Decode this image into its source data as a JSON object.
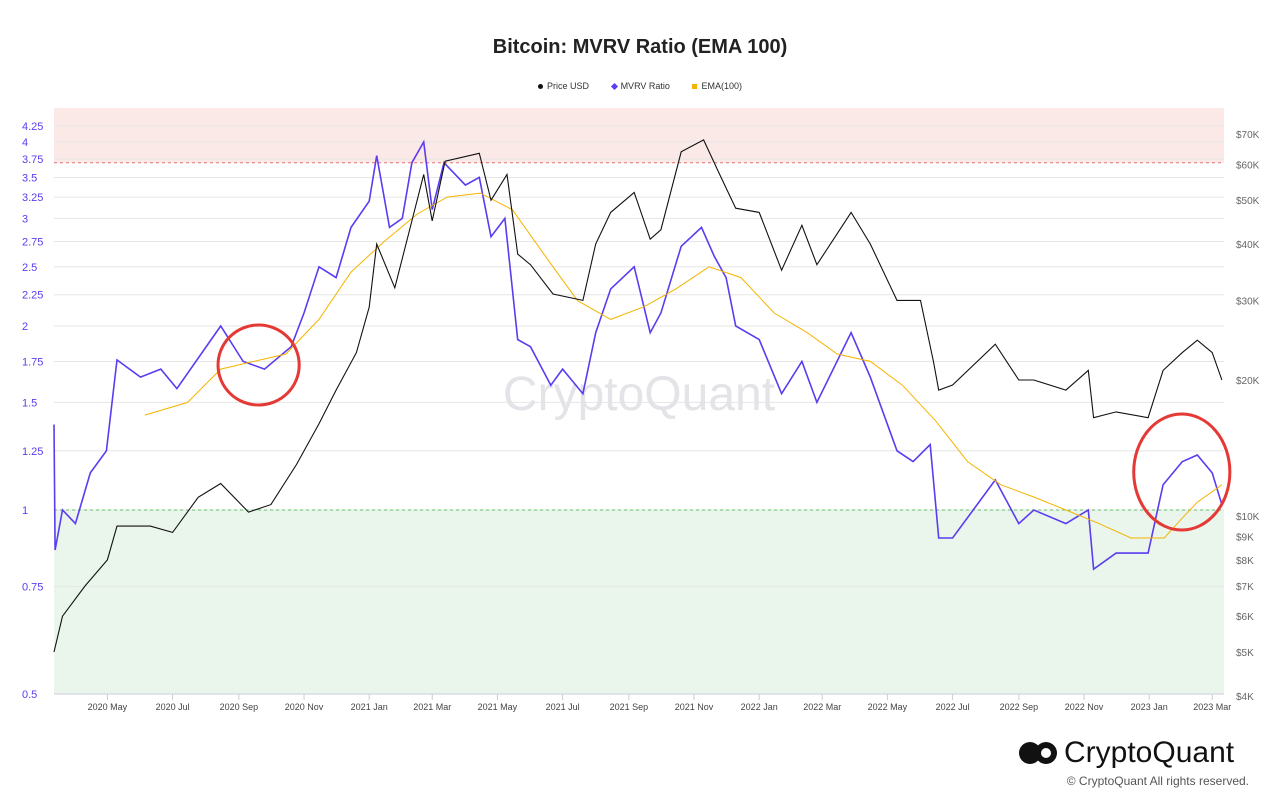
{
  "chart_data": {
    "type": "line",
    "title": "Bitcoin: MVRV Ratio (EMA 100)",
    "legend_position": "top",
    "y_left": {
      "scale": "log",
      "range": [
        0.5,
        4.5
      ],
      "ticks": [
        "0.5",
        "0.75",
        "1",
        "1.25",
        "1.5",
        "1.75",
        "2",
        "2.25",
        "2.5",
        "2.75",
        "3",
        "3.25",
        "3.5",
        "3.75",
        "4",
        "4.25"
      ]
    },
    "y_right": {
      "scale": "log",
      "range": [
        4000,
        80000
      ],
      "ticks": [
        {
          "v": 4000,
          "label": "$4K"
        },
        {
          "v": 5000,
          "label": "$5K"
        },
        {
          "v": 6000,
          "label": "$6K"
        },
        {
          "v": 7000,
          "label": "$7K"
        },
        {
          "v": 8000,
          "label": "$8K"
        },
        {
          "v": 9000,
          "label": "$9K"
        },
        {
          "v": 10000,
          "label": "$10K"
        },
        {
          "v": 20000,
          "label": "$20K"
        },
        {
          "v": 30000,
          "label": "$30K"
        },
        {
          "v": 40000,
          "label": "$40K"
        },
        {
          "v": 50000,
          "label": "$50K"
        },
        {
          "v": 60000,
          "label": "$60K"
        },
        {
          "v": 70000,
          "label": "$70K"
        }
      ]
    },
    "x": {
      "range": [
        "2020-03-12",
        "2023-03-12"
      ],
      "ticks": [
        {
          "d": "2020-05-01",
          "label": "2020 May"
        },
        {
          "d": "2020-07-01",
          "label": "2020 Jul"
        },
        {
          "d": "2020-09-01",
          "label": "2020 Sep"
        },
        {
          "d": "2020-11-01",
          "label": "2020 Nov"
        },
        {
          "d": "2021-01-01",
          "label": "2021 Jan"
        },
        {
          "d": "2021-03-01",
          "label": "2021 Mar"
        },
        {
          "d": "2021-05-01",
          "label": "2021 May"
        },
        {
          "d": "2021-07-01",
          "label": "2021 Jul"
        },
        {
          "d": "2021-09-01",
          "label": "2021 Sep"
        },
        {
          "d": "2021-11-01",
          "label": "2021 Nov"
        },
        {
          "d": "2022-01-01",
          "label": "2022 Jan"
        },
        {
          "d": "2022-03-01",
          "label": "2022 Mar"
        },
        {
          "d": "2022-05-01",
          "label": "2022 May"
        },
        {
          "d": "2022-07-01",
          "label": "2022 Jul"
        },
        {
          "d": "2022-09-01",
          "label": "2022 Sep"
        },
        {
          "d": "2022-11-01",
          "label": "2022 Nov"
        },
        {
          "d": "2023-01-01",
          "label": "2023 Jan"
        },
        {
          "d": "2023-03-01",
          "label": "2023 Mar"
        }
      ]
    },
    "zones": {
      "overvalued_above": 3.7,
      "undervalued_below": 1,
      "overvalued_color": "#fbe9e7",
      "undervalued_color": "#eaf5ec"
    },
    "series": [
      {
        "name": "Price USD",
        "axis": "right",
        "color": "#111111",
        "points": [
          [
            "2020-03-12",
            5000
          ],
          [
            "2020-03-20",
            6000
          ],
          [
            "2020-04-10",
            7000
          ],
          [
            "2020-05-01",
            8000
          ],
          [
            "2020-05-10",
            9500
          ],
          [
            "2020-06-10",
            9500
          ],
          [
            "2020-07-01",
            9200
          ],
          [
            "2020-07-25",
            11000
          ],
          [
            "2020-08-15",
            11800
          ],
          [
            "2020-09-10",
            10200
          ],
          [
            "2020-10-01",
            10600
          ],
          [
            "2020-10-25",
            13000
          ],
          [
            "2020-11-15",
            16000
          ],
          [
            "2020-12-01",
            19000
          ],
          [
            "2020-12-20",
            23000
          ],
          [
            "2021-01-01",
            29000
          ],
          [
            "2021-01-08",
            40000
          ],
          [
            "2021-01-25",
            32000
          ],
          [
            "2021-02-10",
            45000
          ],
          [
            "2021-02-21",
            57000
          ],
          [
            "2021-03-01",
            45000
          ],
          [
            "2021-03-13",
            61000
          ],
          [
            "2021-04-14",
            63500
          ],
          [
            "2021-04-25",
            50000
          ],
          [
            "2021-05-10",
            57000
          ],
          [
            "2021-05-20",
            38000
          ],
          [
            "2021-06-01",
            36000
          ],
          [
            "2021-06-22",
            31000
          ],
          [
            "2021-07-20",
            30000
          ],
          [
            "2021-08-01",
            40000
          ],
          [
            "2021-08-15",
            47000
          ],
          [
            "2021-09-06",
            52000
          ],
          [
            "2021-09-21",
            41000
          ],
          [
            "2021-10-01",
            43000
          ],
          [
            "2021-10-20",
            64000
          ],
          [
            "2021-11-10",
            68000
          ],
          [
            "2021-11-25",
            57000
          ],
          [
            "2021-12-10",
            48000
          ],
          [
            "2022-01-01",
            47000
          ],
          [
            "2022-01-22",
            35000
          ],
          [
            "2022-02-10",
            44000
          ],
          [
            "2022-02-24",
            36000
          ],
          [
            "2022-03-28",
            47000
          ],
          [
            "2022-04-15",
            40000
          ],
          [
            "2022-05-10",
            30000
          ],
          [
            "2022-06-01",
            30000
          ],
          [
            "2022-06-13",
            22000
          ],
          [
            "2022-06-18",
            19000
          ],
          [
            "2022-07-01",
            19500
          ],
          [
            "2022-08-10",
            24000
          ],
          [
            "2022-09-01",
            20000
          ],
          [
            "2022-09-15",
            20000
          ],
          [
            "2022-10-15",
            19000
          ],
          [
            "2022-11-05",
            21000
          ],
          [
            "2022-11-10",
            16500
          ],
          [
            "2022-12-01",
            17000
          ],
          [
            "2022-12-31",
            16500
          ],
          [
            "2023-01-14",
            21000
          ],
          [
            "2023-02-01",
            23000
          ],
          [
            "2023-02-15",
            24500
          ],
          [
            "2023-03-01",
            23000
          ],
          [
            "2023-03-10",
            20000
          ]
        ]
      },
      {
        "name": "MVRV Ratio",
        "axis": "left",
        "color": "#5b3cf0",
        "points": [
          [
            "2020-03-12",
            1.38
          ],
          [
            "2020-03-13",
            0.86
          ],
          [
            "2020-03-20",
            1.0
          ],
          [
            "2020-04-01",
            0.95
          ],
          [
            "2020-04-15",
            1.15
          ],
          [
            "2020-04-30",
            1.25
          ],
          [
            "2020-05-10",
            1.76
          ],
          [
            "2020-06-01",
            1.65
          ],
          [
            "2020-06-20",
            1.7
          ],
          [
            "2020-07-05",
            1.58
          ],
          [
            "2020-08-15",
            2.0
          ],
          [
            "2020-09-05",
            1.75
          ],
          [
            "2020-09-25",
            1.7
          ],
          [
            "2020-10-20",
            1.85
          ],
          [
            "2020-11-01",
            2.1
          ],
          [
            "2020-11-15",
            2.5
          ],
          [
            "2020-12-01",
            2.4
          ],
          [
            "2020-12-15",
            2.9
          ],
          [
            "2021-01-01",
            3.2
          ],
          [
            "2021-01-08",
            3.8
          ],
          [
            "2021-01-20",
            2.9
          ],
          [
            "2021-02-01",
            3.0
          ],
          [
            "2021-02-10",
            3.7
          ],
          [
            "2021-02-21",
            4.0
          ],
          [
            "2021-03-01",
            3.1
          ],
          [
            "2021-03-12",
            3.7
          ],
          [
            "2021-04-01",
            3.4
          ],
          [
            "2021-04-14",
            3.5
          ],
          [
            "2021-04-25",
            2.8
          ],
          [
            "2021-05-08",
            3.0
          ],
          [
            "2021-05-20",
            1.9
          ],
          [
            "2021-06-01",
            1.85
          ],
          [
            "2021-06-20",
            1.6
          ],
          [
            "2021-07-01",
            1.7
          ],
          [
            "2021-07-20",
            1.55
          ],
          [
            "2021-08-01",
            1.95
          ],
          [
            "2021-08-15",
            2.3
          ],
          [
            "2021-09-06",
            2.5
          ],
          [
            "2021-09-21",
            1.95
          ],
          [
            "2021-10-01",
            2.1
          ],
          [
            "2021-10-20",
            2.7
          ],
          [
            "2021-11-08",
            2.9
          ],
          [
            "2021-11-20",
            2.6
          ],
          [
            "2021-12-01",
            2.4
          ],
          [
            "2021-12-10",
            2.0
          ],
          [
            "2022-01-01",
            1.9
          ],
          [
            "2022-01-22",
            1.55
          ],
          [
            "2022-02-10",
            1.75
          ],
          [
            "2022-02-24",
            1.5
          ],
          [
            "2022-03-28",
            1.95
          ],
          [
            "2022-04-15",
            1.65
          ],
          [
            "2022-05-10",
            1.25
          ],
          [
            "2022-05-25",
            1.2
          ],
          [
            "2022-06-10",
            1.28
          ],
          [
            "2022-06-18",
            0.9
          ],
          [
            "2022-07-01",
            0.9
          ],
          [
            "2022-08-10",
            1.12
          ],
          [
            "2022-09-01",
            0.95
          ],
          [
            "2022-09-15",
            1.0
          ],
          [
            "2022-10-15",
            0.95
          ],
          [
            "2022-11-05",
            1.0
          ],
          [
            "2022-11-10",
            0.8
          ],
          [
            "2022-12-01",
            0.85
          ],
          [
            "2022-12-31",
            0.85
          ],
          [
            "2023-01-14",
            1.1
          ],
          [
            "2023-02-01",
            1.2
          ],
          [
            "2023-02-15",
            1.23
          ],
          [
            "2023-03-01",
            1.15
          ],
          [
            "2023-03-10",
            1.02
          ]
        ]
      },
      {
        "name": "EMA(100)",
        "axis": "left",
        "color": "#f5b400",
        "points": [
          [
            "2020-06-05",
            1.43
          ],
          [
            "2020-07-15",
            1.5
          ],
          [
            "2020-08-15",
            1.7
          ],
          [
            "2020-09-15",
            1.75
          ],
          [
            "2020-10-15",
            1.8
          ],
          [
            "2020-11-15",
            2.05
          ],
          [
            "2020-12-15",
            2.45
          ],
          [
            "2021-01-15",
            2.75
          ],
          [
            "2021-02-15",
            3.05
          ],
          [
            "2021-03-15",
            3.25
          ],
          [
            "2021-04-15",
            3.3
          ],
          [
            "2021-05-15",
            3.1
          ],
          [
            "2021-06-15",
            2.6
          ],
          [
            "2021-07-15",
            2.2
          ],
          [
            "2021-08-15",
            2.05
          ],
          [
            "2021-09-15",
            2.15
          ],
          [
            "2021-10-15",
            2.3
          ],
          [
            "2021-11-15",
            2.5
          ],
          [
            "2021-12-15",
            2.4
          ],
          [
            "2022-01-15",
            2.1
          ],
          [
            "2022-02-15",
            1.95
          ],
          [
            "2022-03-15",
            1.8
          ],
          [
            "2022-04-15",
            1.75
          ],
          [
            "2022-05-15",
            1.6
          ],
          [
            "2022-06-15",
            1.4
          ],
          [
            "2022-07-15",
            1.2
          ],
          [
            "2022-08-15",
            1.1
          ],
          [
            "2022-09-15",
            1.05
          ],
          [
            "2022-10-15",
            1.0
          ],
          [
            "2022-11-15",
            0.95
          ],
          [
            "2022-12-15",
            0.9
          ],
          [
            "2023-01-15",
            0.9
          ],
          [
            "2023-02-01",
            0.97
          ],
          [
            "2023-02-15",
            1.03
          ],
          [
            "2023-03-10",
            1.1
          ]
        ]
      }
    ],
    "annotations": [
      {
        "type": "circle",
        "color": "#e53935",
        "around": [
          "2020-08-20",
          "2020-10-20"
        ]
      },
      {
        "type": "circle",
        "color": "#e53935",
        "around": [
          "2022-12-25",
          "2023-03-10"
        ]
      }
    ],
    "watermark": "CryptoQuant"
  },
  "footer": {
    "logo": "CryptoQuant",
    "copyright": "© CryptoQuant All rights reserved."
  }
}
